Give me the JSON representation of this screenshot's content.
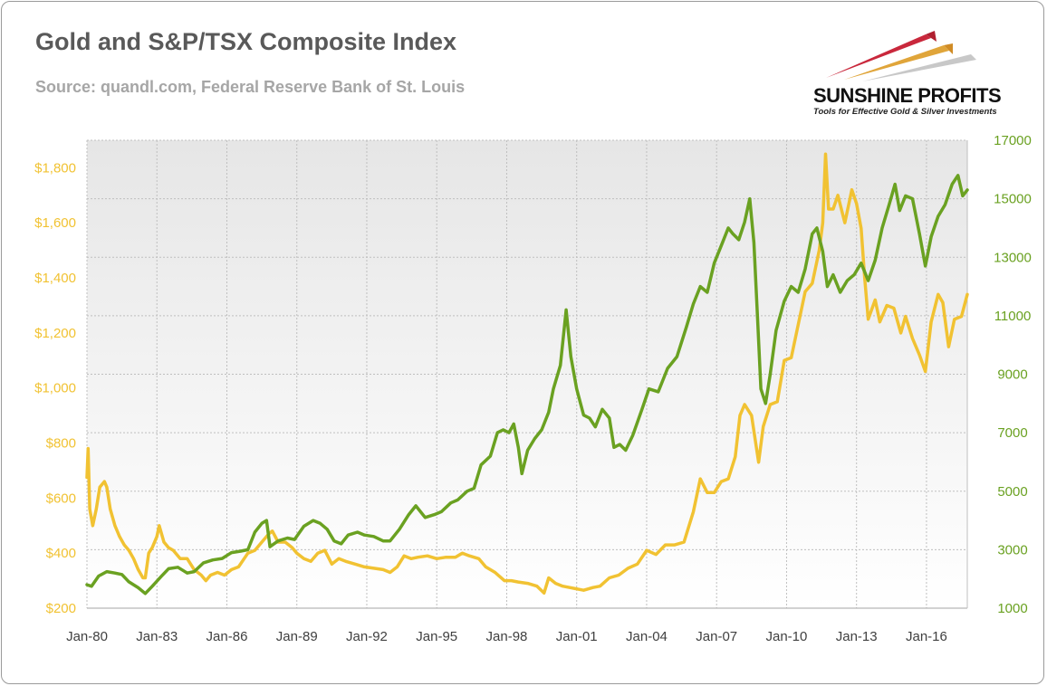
{
  "header": {
    "title": "Gold and S&P/TSX Composite Index",
    "subtitle": "Source: quandl.com, Federal Reserve Bank of St. Louis"
  },
  "logo": {
    "name": "SUNSHINE PROFITS",
    "tagline": "Tools for Effective Gold & Silver Investments"
  },
  "colors": {
    "gold": "#f1c232",
    "tsx": "#6aa121",
    "grid": "#bfbfbf",
    "plot_bg_top": "#e8e8e8",
    "plot_bg_bottom": "#ffffff"
  },
  "chart_data": {
    "type": "line",
    "title": "Gold and S&P/TSX Composite Index",
    "x_ticks": [
      "Jan-80",
      "Jan-83",
      "Jan-86",
      "Jan-89",
      "Jan-92",
      "Jan-95",
      "Jan-98",
      "Jan-01",
      "Jan-04",
      "Jan-07",
      "Jan-10",
      "Jan-13",
      "Jan-16"
    ],
    "x_range": [
      1980.0,
      2017.75
    ],
    "y_left": {
      "range": [
        200,
        1900
      ],
      "ticks": [
        200,
        400,
        600,
        800,
        1000,
        1200,
        1400,
        1600,
        1800
      ],
      "tick_labels": [
        "$200",
        "$400",
        "$600",
        "$800",
        "$1,000",
        "$1,200",
        "$1,400",
        "$1,600",
        "$1,800"
      ]
    },
    "y_right": {
      "range": [
        1000,
        17000
      ],
      "ticks": [
        1000,
        3000,
        5000,
        7000,
        9000,
        11000,
        13000,
        15000,
        17000
      ],
      "tick_labels": [
        "1000",
        "3000",
        "5000",
        "7000",
        "9000",
        "11000",
        "13000",
        "15000",
        "17000"
      ]
    },
    "grid": true,
    "legend": "none",
    "series": [
      {
        "axis": "left",
        "color": "#f1c232",
        "points": [
          [
            1980.0,
            675
          ],
          [
            1980.05,
            780
          ],
          [
            1980.12,
            560
          ],
          [
            1980.25,
            500
          ],
          [
            1980.4,
            560
          ],
          [
            1980.55,
            640
          ],
          [
            1980.75,
            660
          ],
          [
            1980.85,
            640
          ],
          [
            1981.0,
            560
          ],
          [
            1981.2,
            500
          ],
          [
            1981.4,
            460
          ],
          [
            1981.6,
            430
          ],
          [
            1981.8,
            410
          ],
          [
            1982.0,
            380
          ],
          [
            1982.2,
            340
          ],
          [
            1982.4,
            310
          ],
          [
            1982.5,
            310
          ],
          [
            1982.65,
            400
          ],
          [
            1982.8,
            420
          ],
          [
            1983.0,
            460
          ],
          [
            1983.1,
            500
          ],
          [
            1983.3,
            440
          ],
          [
            1983.5,
            420
          ],
          [
            1983.7,
            410
          ],
          [
            1984.0,
            380
          ],
          [
            1984.3,
            380
          ],
          [
            1984.6,
            340
          ],
          [
            1984.9,
            320
          ],
          [
            1985.1,
            300
          ],
          [
            1985.3,
            320
          ],
          [
            1985.6,
            330
          ],
          [
            1985.9,
            320
          ],
          [
            1986.2,
            340
          ],
          [
            1986.5,
            350
          ],
          [
            1986.9,
            400
          ],
          [
            1987.2,
            410
          ],
          [
            1987.5,
            440
          ],
          [
            1987.8,
            470
          ],
          [
            1987.95,
            480
          ],
          [
            1988.2,
            440
          ],
          [
            1988.5,
            440
          ],
          [
            1988.8,
            420
          ],
          [
            1989.0,
            400
          ],
          [
            1989.3,
            380
          ],
          [
            1989.6,
            370
          ],
          [
            1989.9,
            400
          ],
          [
            1990.2,
            410
          ],
          [
            1990.5,
            360
          ],
          [
            1990.8,
            380
          ],
          [
            1991.1,
            370
          ],
          [
            1991.5,
            360
          ],
          [
            1991.9,
            350
          ],
          [
            1992.3,
            345
          ],
          [
            1992.7,
            340
          ],
          [
            1993.0,
            330
          ],
          [
            1993.3,
            350
          ],
          [
            1993.6,
            390
          ],
          [
            1993.9,
            380
          ],
          [
            1994.2,
            385
          ],
          [
            1994.6,
            390
          ],
          [
            1995.0,
            380
          ],
          [
            1995.4,
            385
          ],
          [
            1995.8,
            385
          ],
          [
            1996.1,
            400
          ],
          [
            1996.4,
            390
          ],
          [
            1996.8,
            380
          ],
          [
            1997.1,
            350
          ],
          [
            1997.5,
            330
          ],
          [
            1997.9,
            300
          ],
          [
            1998.2,
            300
          ],
          [
            1998.5,
            295
          ],
          [
            1998.9,
            290
          ],
          [
            1999.3,
            280
          ],
          [
            1999.6,
            255
          ],
          [
            1999.8,
            310
          ],
          [
            2000.1,
            290
          ],
          [
            2000.4,
            280
          ],
          [
            2000.7,
            275
          ],
          [
            2001.0,
            270
          ],
          [
            2001.3,
            265
          ],
          [
            2001.7,
            275
          ],
          [
            2002.0,
            280
          ],
          [
            2002.4,
            310
          ],
          [
            2002.8,
            320
          ],
          [
            2003.2,
            345
          ],
          [
            2003.6,
            360
          ],
          [
            2004.0,
            410
          ],
          [
            2004.4,
            395
          ],
          [
            2004.8,
            430
          ],
          [
            2005.2,
            430
          ],
          [
            2005.6,
            440
          ],
          [
            2006.0,
            550
          ],
          [
            2006.3,
            670
          ],
          [
            2006.6,
            620
          ],
          [
            2006.9,
            620
          ],
          [
            2007.2,
            660
          ],
          [
            2007.5,
            670
          ],
          [
            2007.8,
            750
          ],
          [
            2008.0,
            900
          ],
          [
            2008.2,
            940
          ],
          [
            2008.5,
            900
          ],
          [
            2008.8,
            730
          ],
          [
            2009.0,
            860
          ],
          [
            2009.3,
            940
          ],
          [
            2009.6,
            950
          ],
          [
            2009.9,
            1100
          ],
          [
            2010.2,
            1110
          ],
          [
            2010.5,
            1230
          ],
          [
            2010.8,
            1350
          ],
          [
            2011.1,
            1380
          ],
          [
            2011.4,
            1500
          ],
          [
            2011.55,
            1600
          ],
          [
            2011.67,
            1850
          ],
          [
            2011.8,
            1650
          ],
          [
            2012.0,
            1650
          ],
          [
            2012.2,
            1700
          ],
          [
            2012.5,
            1600
          ],
          [
            2012.8,
            1720
          ],
          [
            2013.0,
            1670
          ],
          [
            2013.2,
            1580
          ],
          [
            2013.35,
            1400
          ],
          [
            2013.5,
            1250
          ],
          [
            2013.8,
            1320
          ],
          [
            2014.0,
            1240
          ],
          [
            2014.3,
            1300
          ],
          [
            2014.6,
            1290
          ],
          [
            2014.9,
            1200
          ],
          [
            2015.1,
            1260
          ],
          [
            2015.4,
            1180
          ],
          [
            2015.7,
            1120
          ],
          [
            2015.95,
            1060
          ],
          [
            2016.2,
            1240
          ],
          [
            2016.5,
            1340
          ],
          [
            2016.7,
            1310
          ],
          [
            2016.95,
            1150
          ],
          [
            2017.2,
            1250
          ],
          [
            2017.5,
            1260
          ],
          [
            2017.75,
            1340
          ]
        ]
      },
      {
        "axis": "right",
        "color": "#6aa121",
        "points": [
          [
            1980.0,
            1800
          ],
          [
            1980.2,
            1750
          ],
          [
            1980.5,
            2100
          ],
          [
            1980.85,
            2250
          ],
          [
            1981.2,
            2200
          ],
          [
            1981.5,
            2150
          ],
          [
            1981.8,
            1900
          ],
          [
            1982.2,
            1700
          ],
          [
            1982.5,
            1500
          ],
          [
            1982.8,
            1750
          ],
          [
            1983.2,
            2100
          ],
          [
            1983.5,
            2350
          ],
          [
            1983.9,
            2400
          ],
          [
            1984.3,
            2200
          ],
          [
            1984.6,
            2250
          ],
          [
            1985.0,
            2550
          ],
          [
            1985.4,
            2650
          ],
          [
            1985.8,
            2700
          ],
          [
            1986.2,
            2900
          ],
          [
            1986.6,
            2950
          ],
          [
            1986.9,
            3000
          ],
          [
            1987.2,
            3600
          ],
          [
            1987.5,
            3900
          ],
          [
            1987.7,
            4000
          ],
          [
            1987.85,
            3100
          ],
          [
            1988.2,
            3300
          ],
          [
            1988.6,
            3400
          ],
          [
            1988.9,
            3350
          ],
          [
            1989.3,
            3800
          ],
          [
            1989.7,
            4000
          ],
          [
            1990.0,
            3900
          ],
          [
            1990.3,
            3700
          ],
          [
            1990.6,
            3300
          ],
          [
            1990.9,
            3200
          ],
          [
            1991.2,
            3500
          ],
          [
            1991.6,
            3600
          ],
          [
            1991.9,
            3500
          ],
          [
            1992.3,
            3450
          ],
          [
            1992.7,
            3300
          ],
          [
            1993.0,
            3300
          ],
          [
            1993.4,
            3700
          ],
          [
            1993.8,
            4200
          ],
          [
            1994.1,
            4500
          ],
          [
            1994.5,
            4100
          ],
          [
            1994.9,
            4200
          ],
          [
            1995.2,
            4300
          ],
          [
            1995.6,
            4600
          ],
          [
            1995.9,
            4700
          ],
          [
            1996.3,
            5000
          ],
          [
            1996.6,
            5100
          ],
          [
            1996.9,
            5900
          ],
          [
            1997.3,
            6200
          ],
          [
            1997.6,
            7000
          ],
          [
            1997.85,
            7100
          ],
          [
            1998.1,
            7000
          ],
          [
            1998.3,
            7300
          ],
          [
            1998.5,
            6500
          ],
          [
            1998.65,
            5600
          ],
          [
            1998.9,
            6400
          ],
          [
            1999.2,
            6800
          ],
          [
            1999.5,
            7100
          ],
          [
            1999.8,
            7700
          ],
          [
            2000.0,
            8500
          ],
          [
            2000.3,
            9300
          ],
          [
            2000.55,
            11200
          ],
          [
            2000.75,
            9600
          ],
          [
            2001.0,
            8500
          ],
          [
            2001.3,
            7600
          ],
          [
            2001.55,
            7500
          ],
          [
            2001.8,
            7200
          ],
          [
            2002.1,
            7800
          ],
          [
            2002.4,
            7500
          ],
          [
            2002.6,
            6500
          ],
          [
            2002.85,
            6600
          ],
          [
            2003.1,
            6400
          ],
          [
            2003.4,
            6900
          ],
          [
            2003.8,
            7800
          ],
          [
            2004.1,
            8500
          ],
          [
            2004.5,
            8400
          ],
          [
            2004.9,
            9200
          ],
          [
            2005.3,
            9600
          ],
          [
            2005.7,
            10600
          ],
          [
            2006.0,
            11400
          ],
          [
            2006.3,
            12000
          ],
          [
            2006.6,
            11800
          ],
          [
            2006.9,
            12800
          ],
          [
            2007.2,
            13400
          ],
          [
            2007.5,
            14000
          ],
          [
            2007.7,
            13800
          ],
          [
            2007.95,
            13600
          ],
          [
            2008.2,
            14200
          ],
          [
            2008.42,
            15000
          ],
          [
            2008.6,
            13500
          ],
          [
            2008.75,
            11000
          ],
          [
            2008.9,
            8500
          ],
          [
            2009.1,
            8000
          ],
          [
            2009.3,
            9000
          ],
          [
            2009.55,
            10500
          ],
          [
            2009.9,
            11500
          ],
          [
            2010.2,
            12000
          ],
          [
            2010.5,
            11800
          ],
          [
            2010.8,
            12600
          ],
          [
            2011.1,
            13800
          ],
          [
            2011.3,
            14000
          ],
          [
            2011.55,
            13200
          ],
          [
            2011.75,
            12000
          ],
          [
            2012.0,
            12400
          ],
          [
            2012.3,
            11800
          ],
          [
            2012.6,
            12200
          ],
          [
            2012.9,
            12400
          ],
          [
            2013.2,
            12800
          ],
          [
            2013.5,
            12200
          ],
          [
            2013.8,
            12900
          ],
          [
            2014.1,
            14000
          ],
          [
            2014.4,
            14800
          ],
          [
            2014.65,
            15500
          ],
          [
            2014.85,
            14600
          ],
          [
            2015.1,
            15100
          ],
          [
            2015.4,
            15000
          ],
          [
            2015.7,
            13800
          ],
          [
            2015.95,
            12700
          ],
          [
            2016.2,
            13700
          ],
          [
            2016.5,
            14400
          ],
          [
            2016.8,
            14800
          ],
          [
            2017.1,
            15500
          ],
          [
            2017.35,
            15800
          ],
          [
            2017.55,
            15100
          ],
          [
            2017.75,
            15300
          ]
        ]
      }
    ]
  }
}
